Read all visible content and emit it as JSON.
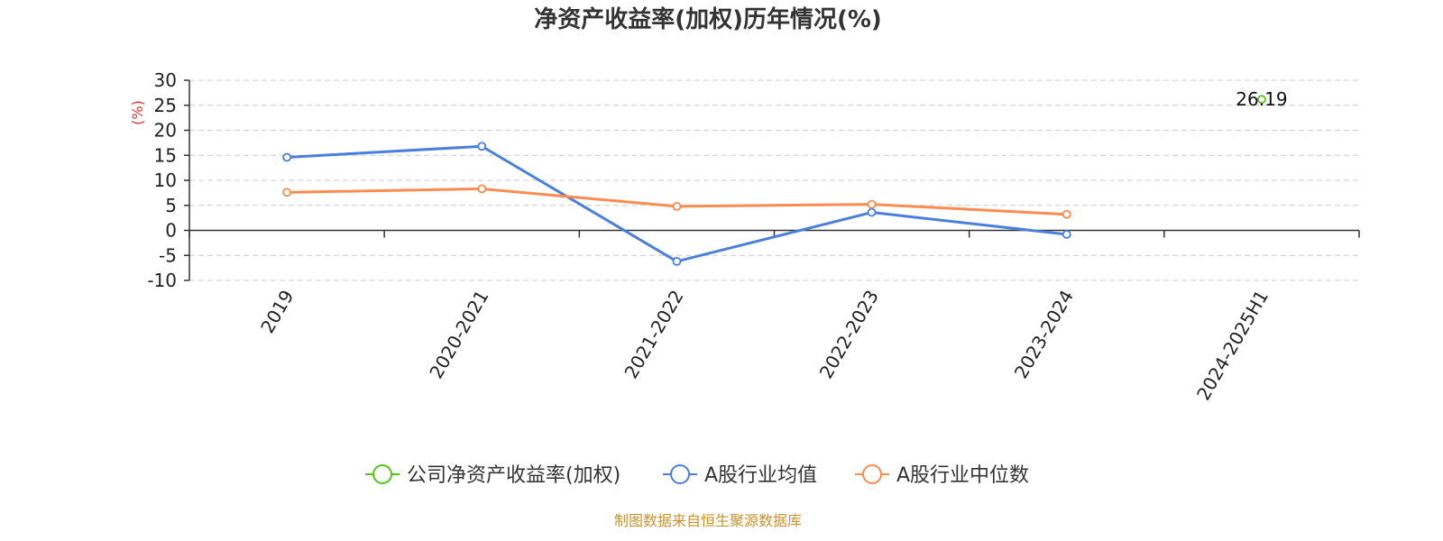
{
  "chart_data": {
    "type": "line",
    "title": "净资产收益率(加权)历年情况(%)",
    "ylabel": "(%)",
    "ylim": [
      -10,
      30
    ],
    "yticks": [
      30,
      25,
      20,
      15,
      10,
      5,
      0,
      -5,
      -10
    ],
    "grid": true,
    "legend_position": "bottom",
    "categories": [
      "2019",
      "2020-2021",
      "2021-2022",
      "2022-2023",
      "2023-2024",
      "2024-2025H1"
    ],
    "series": [
      {
        "name": "公司净资产收益率(加权)",
        "color": "#52c41a",
        "values": [
          null,
          null,
          null,
          null,
          null,
          26.19
        ],
        "labels": [
          null,
          null,
          null,
          null,
          null,
          "26.19"
        ]
      },
      {
        "name": "A股行业均值",
        "color": "#4a7fdb",
        "values": [
          14.6,
          16.8,
          -6.2,
          3.6,
          -0.8,
          null
        ]
      },
      {
        "name": "A股行业中位数",
        "color": "#fa8c50",
        "values": [
          7.6,
          8.3,
          4.8,
          5.2,
          3.2,
          null
        ]
      }
    ]
  },
  "source": "制图数据来自恒生聚源数据库"
}
